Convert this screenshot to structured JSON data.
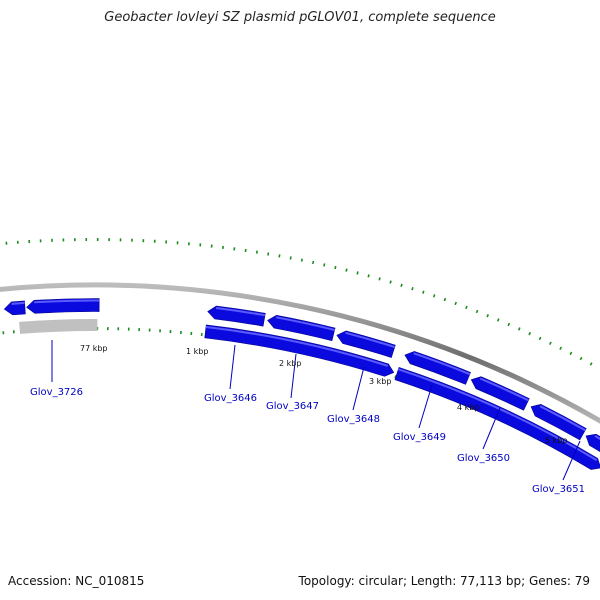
{
  "title": "Geobacter lovleyi SZ plasmid pGLOV01, complete sequence",
  "footer": {
    "accession": "Accession: NC_010815",
    "summary": "Topology: circular; Length: 77,113 bp; Genes: 79"
  },
  "colors": {
    "gene": "#0a0adf",
    "gene_highlight": "#5a5aff",
    "gene_grey": "#c0c0c0",
    "backbone": "#8c8c8c",
    "tick": "#1e8c1e",
    "label": "#0000c0"
  },
  "kbp_labels": [
    "77 kbp",
    "1 kbp",
    "2 kbp",
    "3 kbp",
    "4 kbp",
    "5 kbp"
  ],
  "genes": [
    "Glov_3726",
    "Glov_3646",
    "Glov_3647",
    "Glov_3648",
    "Glov_3649",
    "Glov_3650",
    "Glov_3651"
  ]
}
